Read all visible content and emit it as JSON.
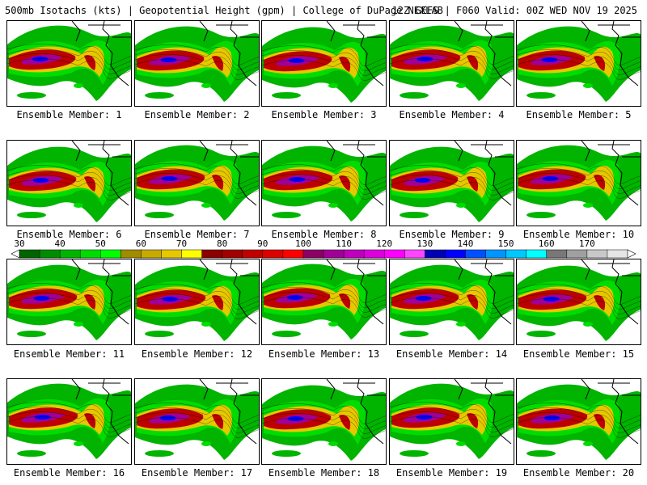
{
  "header": {
    "left": "500mb Isotachs (kts) | Geopotential Height (gpm) | College of DuPage NEXLAB",
    "right": "12Z GEFS | F060 Valid: 00Z WED NOV 19 2025"
  },
  "colorbar": {
    "ticks": [
      "30",
      "40",
      "50",
      "60",
      "70",
      "80",
      "90",
      "100",
      "110",
      "120",
      "130",
      "140",
      "150",
      "160",
      "170"
    ],
    "colors": [
      "#006400",
      "#008c00",
      "#00b400",
      "#00dc00",
      "#00ff00",
      "#a08c00",
      "#c8aa00",
      "#e6c800",
      "#ffff00",
      "#8c0000",
      "#a00000",
      "#be0000",
      "#dc0000",
      "#ff0000",
      "#8c0064",
      "#a00096",
      "#be00be",
      "#dc00dc",
      "#ff00ff",
      "#ff46ff",
      "#0000b4",
      "#0000ff",
      "#0050ff",
      "#0096ff",
      "#00c8ff",
      "#00ffff",
      "#787878",
      "#a0a0a0",
      "#c8c8c8",
      "#e6e6e6"
    ]
  },
  "members": [
    {
      "label": "Ensemble Member: 1"
    },
    {
      "label": "Ensemble Member: 2"
    },
    {
      "label": "Ensemble Member: 3"
    },
    {
      "label": "Ensemble Member: 4"
    },
    {
      "label": "Ensemble Member: 5"
    },
    {
      "label": "Ensemble Member: 6"
    },
    {
      "label": "Ensemble Member: 7"
    },
    {
      "label": "Ensemble Member: 8"
    },
    {
      "label": "Ensemble Member: 9"
    },
    {
      "label": "Ensemble Member: 10"
    },
    {
      "label": "Ensemble Member: 11"
    },
    {
      "label": "Ensemble Member: 12"
    },
    {
      "label": "Ensemble Member: 13"
    },
    {
      "label": "Ensemble Member: 14"
    },
    {
      "label": "Ensemble Member: 15"
    },
    {
      "label": "Ensemble Member: 16"
    },
    {
      "label": "Ensemble Member: 17"
    },
    {
      "label": "Ensemble Member: 18"
    },
    {
      "label": "Ensemble Member: 19"
    },
    {
      "label": "Ensemble Member: 20"
    }
  ]
}
